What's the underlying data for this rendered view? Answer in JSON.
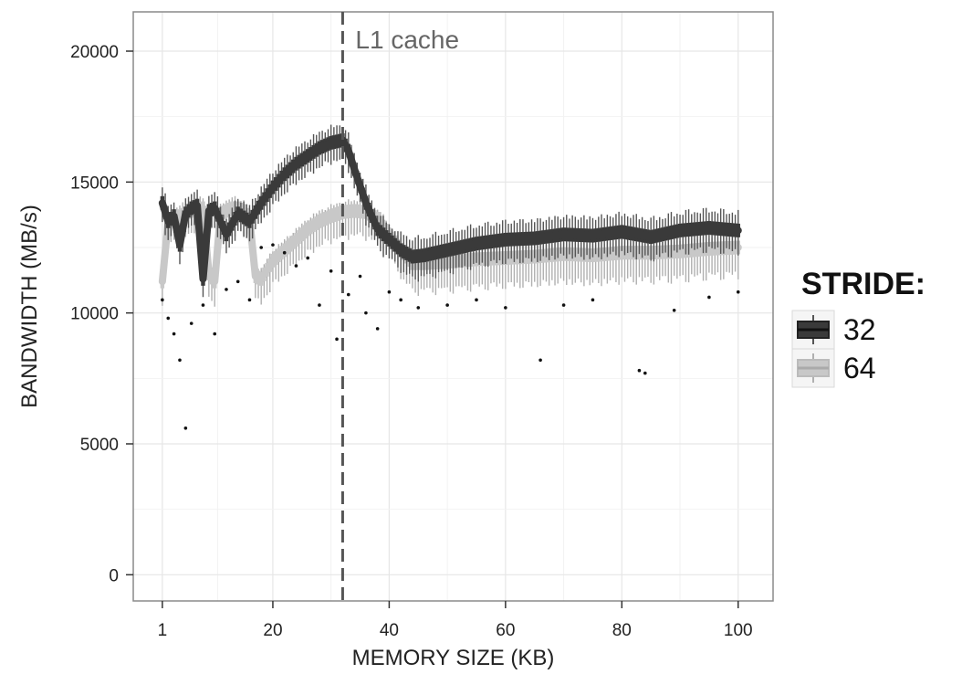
{
  "chart_data": {
    "type": "boxplot",
    "title": "",
    "xlabel": "MEMORY SIZE (KB)",
    "ylabel": "BANDWIDTH (MB/s)",
    "xlim": [
      -4,
      106
    ],
    "ylim": [
      -1000,
      21500
    ],
    "x_ticks": [
      1,
      20,
      40,
      60,
      80,
      100
    ],
    "y_ticks": [
      0,
      5000,
      10000,
      15000,
      20000
    ],
    "grid": true,
    "legend": {
      "title": "STRIDE:",
      "position": "right"
    },
    "annotation": {
      "text": "L1 cache",
      "x": 32,
      "style": "dashed-vline"
    },
    "series": [
      {
        "name": "32",
        "color": "#3a3a3a",
        "whisker_color": "#555555",
        "x": [
          1,
          2,
          3,
          4,
          5,
          6,
          7,
          8,
          9,
          10,
          12,
          14,
          16,
          18,
          20,
          22,
          24,
          26,
          28,
          30,
          32,
          33,
          34,
          36,
          38,
          40,
          42,
          44,
          46,
          50,
          55,
          60,
          65,
          70,
          75,
          80,
          85,
          90,
          95,
          100
        ],
        "median": [
          14200,
          13500,
          13700,
          12600,
          13800,
          14000,
          14100,
          11300,
          13900,
          14000,
          13000,
          13800,
          13500,
          14200,
          14800,
          15300,
          15700,
          16000,
          16300,
          16500,
          16600,
          16200,
          15500,
          14200,
          13200,
          12800,
          12400,
          12150,
          12200,
          12400,
          12650,
          12800,
          12850,
          13000,
          12950,
          13100,
          12900,
          13150,
          13250,
          13150
        ]
      },
      {
        "name": "64",
        "color": "#c8c8c8",
        "whisker_color": "#b0b0b0",
        "x": [
          1,
          2,
          3,
          4,
          5,
          6,
          7,
          8,
          9,
          10,
          11,
          12,
          13,
          14,
          15,
          16,
          17,
          18,
          20,
          22,
          24,
          26,
          28,
          30,
          32,
          34,
          36,
          38,
          40,
          42,
          44,
          46,
          50,
          55,
          60,
          65,
          70,
          75,
          80,
          85,
          90,
          95,
          100
        ],
        "median": [
          11200,
          13500,
          13600,
          13700,
          13800,
          13900,
          13950,
          14000,
          11500,
          11200,
          13800,
          13900,
          14000,
          14000,
          13900,
          13600,
          11400,
          11300,
          12000,
          12400,
          12800,
          13200,
          13500,
          13700,
          13850,
          13900,
          13850,
          13600,
          13000,
          12400,
          11900,
          11900,
          11950,
          12050,
          12100,
          12150,
          12250,
          12200,
          12300,
          12300,
          12350,
          12450,
          12500
        ]
      }
    ],
    "outliers": [
      [
        1,
        10500
      ],
      [
        2,
        9800
      ],
      [
        3,
        9200
      ],
      [
        4,
        8200
      ],
      [
        5,
        5600
      ],
      [
        6,
        9600
      ],
      [
        8,
        10300
      ],
      [
        10,
        9200
      ],
      [
        12,
        10900
      ],
      [
        14,
        11200
      ],
      [
        16,
        10500
      ],
      [
        18,
        12500
      ],
      [
        20,
        12600
      ],
      [
        22,
        12300
      ],
      [
        24,
        11800
      ],
      [
        26,
        12100
      ],
      [
        28,
        10300
      ],
      [
        30,
        11600
      ],
      [
        31,
        9000
      ],
      [
        33,
        10700
      ],
      [
        35,
        11400
      ],
      [
        36,
        10000
      ],
      [
        38,
        9400
      ],
      [
        40,
        10800
      ],
      [
        42,
        10500
      ],
      [
        45,
        10200
      ],
      [
        50,
        10300
      ],
      [
        55,
        10500
      ],
      [
        60,
        10200
      ],
      [
        66,
        8200
      ],
      [
        70,
        10300
      ],
      [
        75,
        10500
      ],
      [
        83,
        7800
      ],
      [
        84,
        7700
      ],
      [
        89,
        10100
      ],
      [
        95,
        10600
      ],
      [
        100,
        10800
      ]
    ]
  }
}
